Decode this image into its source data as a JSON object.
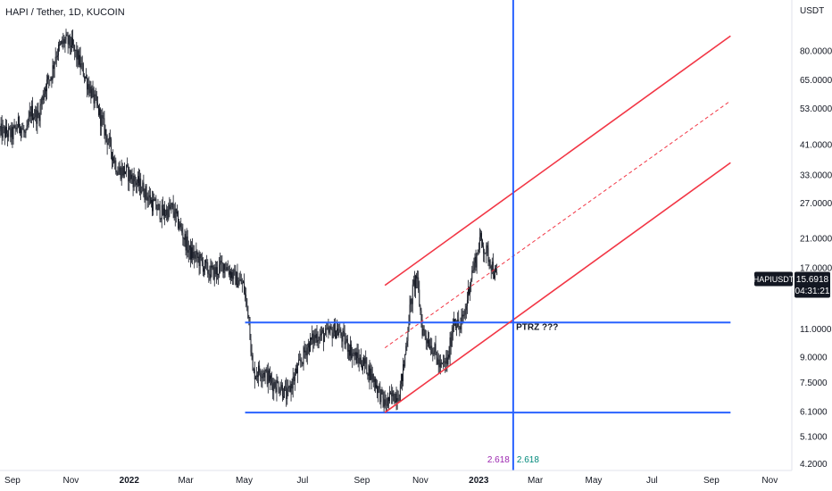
{
  "chart_data": {
    "type": "line",
    "subtype": "candlestick",
    "title": "HAPI / Tether, 1D, KUCOIN",
    "symbol": "HAPIUSDT",
    "y_axis_unit": "USDT",
    "y_scale": "log",
    "ylim": [
      4.0,
      115.0
    ],
    "xlim": [
      "2021-08-19",
      "2023-11-24"
    ],
    "y_ticks": [
      {
        "value": 80,
        "label": "80.0000"
      },
      {
        "value": 65,
        "label": "65.0000"
      },
      {
        "value": 53,
        "label": "53.0000"
      },
      {
        "value": 41,
        "label": "41.0000"
      },
      {
        "value": 33,
        "label": "33.0000"
      },
      {
        "value": 27,
        "label": "27.0000"
      },
      {
        "value": 21,
        "label": "21.0000"
      },
      {
        "value": 17,
        "label": "17.0000"
      },
      {
        "value": 11,
        "label": "11.0000"
      },
      {
        "value": 9,
        "label": "9.0000"
      },
      {
        "value": 7.5,
        "label": "7.5000"
      },
      {
        "value": 6.1,
        "label": "6.1000"
      },
      {
        "value": 5.1,
        "label": "5.1000"
      },
      {
        "value": 4.2,
        "label": "4.2000"
      }
    ],
    "x_ticks": [
      {
        "date": "2021-09-01",
        "label": "Sep",
        "bold": false
      },
      {
        "date": "2021-11-01",
        "label": "Nov",
        "bold": false
      },
      {
        "date": "2022-01-01",
        "label": "2022",
        "bold": true
      },
      {
        "date": "2022-03-01",
        "label": "Mar",
        "bold": false
      },
      {
        "date": "2022-05-01",
        "label": "May",
        "bold": false
      },
      {
        "date": "2022-07-01",
        "label": "Jul",
        "bold": false
      },
      {
        "date": "2022-09-01",
        "label": "Sep",
        "bold": false
      },
      {
        "date": "2022-11-01",
        "label": "Nov",
        "bold": false
      },
      {
        "date": "2023-01-01",
        "label": "2023",
        "bold": true
      },
      {
        "date": "2023-03-01",
        "label": "Mar",
        "bold": false
      },
      {
        "date": "2023-05-01",
        "label": "May",
        "bold": false
      },
      {
        "date": "2023-07-01",
        "label": "Jul",
        "bold": false
      },
      {
        "date": "2023-09-01",
        "label": "Sep",
        "bold": false
      },
      {
        "date": "2023-11-01",
        "label": "Nov",
        "bold": false
      }
    ],
    "price_path": [
      [
        "2021-08-19",
        45
      ],
      [
        "2021-09-01",
        44
      ],
      [
        "2021-09-08",
        48
      ],
      [
        "2021-09-15",
        43
      ],
      [
        "2021-09-20",
        52
      ],
      [
        "2021-09-28",
        50
      ],
      [
        "2021-10-05",
        62
      ],
      [
        "2021-10-12",
        68
      ],
      [
        "2021-10-16",
        78
      ],
      [
        "2021-10-25",
        86
      ],
      [
        "2021-11-01",
        84
      ],
      [
        "2021-11-10",
        74
      ],
      [
        "2021-11-20",
        62
      ],
      [
        "2021-11-30",
        52
      ],
      [
        "2021-12-10",
        42
      ],
      [
        "2021-12-20",
        34
      ],
      [
        "2021-12-28",
        34
      ],
      [
        "2022-01-05",
        32
      ],
      [
        "2022-01-15",
        30
      ],
      [
        "2022-01-25",
        27
      ],
      [
        "2022-02-05",
        25
      ],
      [
        "2022-02-15",
        26
      ],
      [
        "2022-02-25",
        22
      ],
      [
        "2022-03-05",
        19
      ],
      [
        "2022-03-15",
        18
      ],
      [
        "2022-03-25",
        16.5
      ],
      [
        "2022-04-01",
        16.5
      ],
      [
        "2022-04-10",
        17.5
      ],
      [
        "2022-04-20",
        16
      ],
      [
        "2022-04-30",
        15
      ],
      [
        "2022-05-06",
        12
      ],
      [
        "2022-05-10",
        8
      ],
      [
        "2022-05-20",
        8.2
      ],
      [
        "2022-05-30",
        7.5
      ],
      [
        "2022-06-08",
        7.3
      ],
      [
        "2022-06-15",
        6.8
      ],
      [
        "2022-06-20",
        7.5
      ],
      [
        "2022-06-28",
        8.5
      ],
      [
        "2022-07-05",
        9.6
      ],
      [
        "2022-07-15",
        10.5
      ],
      [
        "2022-07-25",
        10.5
      ],
      [
        "2022-08-05",
        11
      ],
      [
        "2022-08-15",
        10
      ],
      [
        "2022-08-25",
        9
      ],
      [
        "2022-09-05",
        8.5
      ],
      [
        "2022-09-15",
        7.5
      ],
      [
        "2022-09-25",
        6.4
      ],
      [
        "2022-10-03",
        6.8
      ],
      [
        "2022-10-10",
        7
      ],
      [
        "2022-10-15",
        8.5
      ],
      [
        "2022-10-20",
        12
      ],
      [
        "2022-10-25",
        15
      ],
      [
        "2022-10-28",
        16
      ],
      [
        "2022-11-03",
        11
      ],
      [
        "2022-11-08",
        10.3
      ],
      [
        "2022-11-15",
        9.5
      ],
      [
        "2022-11-22",
        8.3
      ],
      [
        "2022-11-30",
        8.8
      ],
      [
        "2022-12-06",
        12
      ],
      [
        "2022-12-12",
        11
      ],
      [
        "2022-12-18",
        12.5
      ],
      [
        "2022-12-22",
        15
      ],
      [
        "2022-12-26",
        17
      ],
      [
        "2022-12-30",
        18.5
      ],
      [
        "2023-01-02",
        21
      ],
      [
        "2023-01-05",
        20
      ],
      [
        "2023-01-09",
        19
      ],
      [
        "2023-01-13",
        18
      ],
      [
        "2023-01-17",
        16.5
      ],
      [
        "2023-01-20",
        15.7
      ]
    ],
    "horizontal_levels": [
      11.5,
      6.05
    ],
    "vertical_marker": {
      "date": "2023-02-06",
      "label_left": "2.618",
      "label_right": "2.618"
    },
    "channel": {
      "start_date": "2022-09-25",
      "end_date": "2023-09-21",
      "upper": [
        15.0,
        89.0
      ],
      "median": [
        9.6,
        56.0
      ],
      "lower": [
        6.05,
        36.0
      ]
    },
    "annotations": [
      {
        "date": "2023-02-09",
        "value": 10.9,
        "text": "PTRZ ???"
      }
    ],
    "last_price": {
      "symbol": "HAPIUSDT",
      "price": "15.6918",
      "countdown": "04:31:21"
    },
    "colors": {
      "bull": "#26a69a",
      "bear": "#ef5350",
      "candle": "#131722",
      "channel": "#f23645",
      "level": "#2962ff",
      "vertical": "#2962ff",
      "fib_left": "#9c27b0",
      "fib_right": "#00897b",
      "price_tag": "#131722"
    }
  }
}
